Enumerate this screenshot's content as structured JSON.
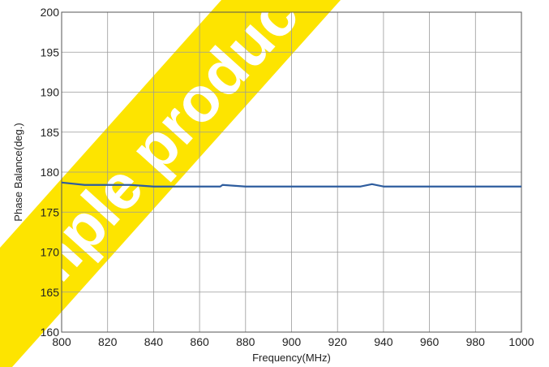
{
  "chart_data": {
    "type": "line",
    "title": "",
    "xlabel": "Frequency(MHz)",
    "ylabel": "Phase Balance(deg.)",
    "xlim": [
      800,
      1000
    ],
    "ylim": [
      160,
      200
    ],
    "xticks": [
      800,
      820,
      840,
      860,
      880,
      900,
      920,
      940,
      960,
      980,
      1000
    ],
    "yticks": [
      160,
      165,
      170,
      175,
      180,
      185,
      190,
      195,
      200
    ],
    "grid": true,
    "legend": "none",
    "series": [
      {
        "color": "#2e5d9e",
        "x": [
          800,
          810,
          830,
          840,
          860,
          869,
          870,
          880,
          900,
          920,
          930,
          935,
          940,
          960,
          980,
          1000
        ],
        "y": [
          178.7,
          178.4,
          178.4,
          178.2,
          178.2,
          178.2,
          178.4,
          178.2,
          178.2,
          178.2,
          178.2,
          178.5,
          178.2,
          178.2,
          178.2,
          178.2
        ]
      }
    ]
  },
  "watermark": {
    "text": "Sample product",
    "color": "#fde400"
  }
}
